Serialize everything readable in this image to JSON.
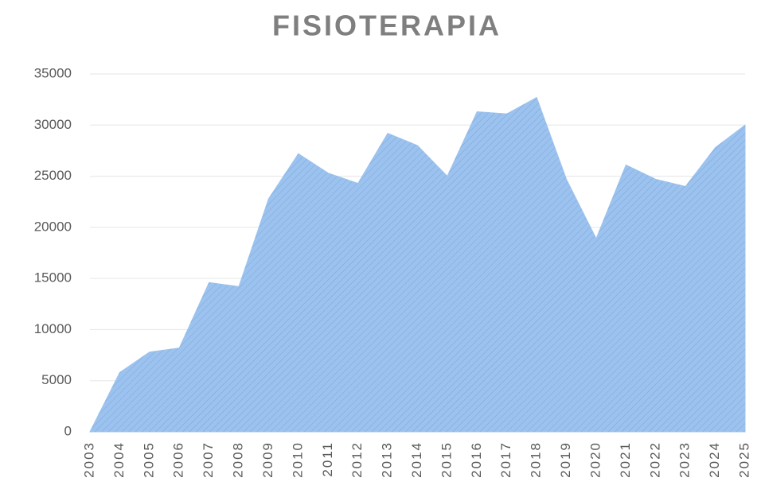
{
  "chart_data": {
    "type": "area",
    "title": "FISIOTERAPIA",
    "categories": [
      "2003",
      "2004",
      "2005",
      "2006",
      "2007",
      "2008",
      "2009",
      "2010",
      "2011",
      "2012",
      "2013",
      "2014",
      "2015",
      "2016",
      "2017",
      "2018",
      "2019",
      "2020",
      "2021",
      "2022",
      "2023",
      "2024",
      "2025"
    ],
    "values": [
      0,
      5800,
      7800,
      8200,
      14600,
      14200,
      22800,
      27200,
      25300,
      24300,
      29200,
      28000,
      25000,
      31300,
      31100,
      32700,
      24700,
      18900,
      26100,
      24700,
      24000,
      27800,
      30000
    ],
    "color": "#9cc3ef",
    "ylim": [
      0,
      35000
    ],
    "yticks": [
      0,
      5000,
      10000,
      15000,
      20000,
      25000,
      30000,
      35000
    ],
    "grid": true
  }
}
